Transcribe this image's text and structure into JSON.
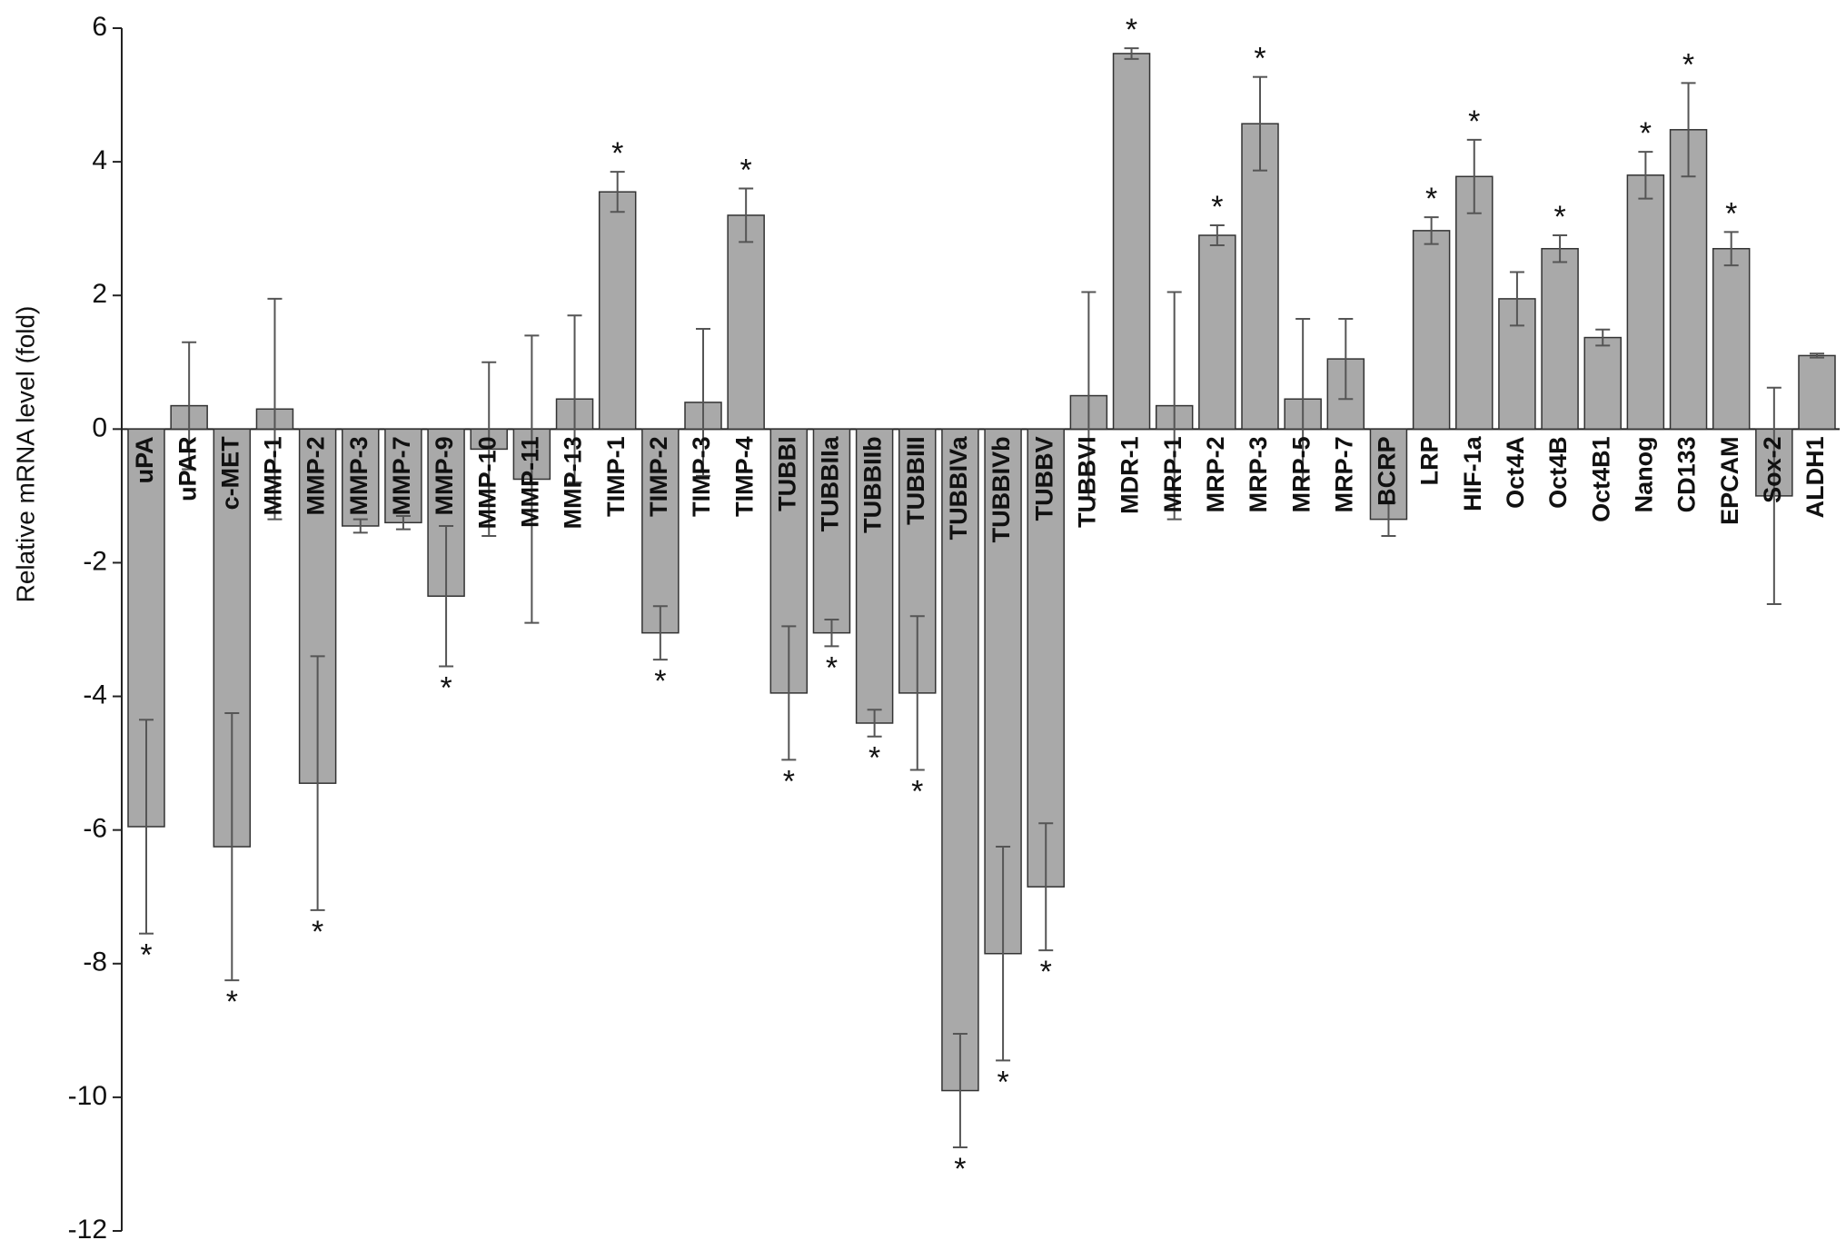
{
  "chart_data": {
    "type": "bar",
    "y_label": "Relative mRNA level (fold)",
    "categories": [
      "uPA",
      "uPAR",
      "c-MET",
      "MMP-1",
      "MMP-2",
      "MMP-3",
      "MMP-7",
      "MMP-9",
      "MMP-10",
      "MMP-11",
      "MMP-13",
      "TIMP-1",
      "TIMP-2",
      "TIMP-3",
      "TIMP-4",
      "TUBBI",
      "TUBBIIa",
      "TUBBIIb",
      "TUBBIII",
      "TUBBIVa",
      "TUBBIVb",
      "TUBBV",
      "TUBBVI",
      "MDR-1",
      "MRP-1",
      "MRP-2",
      "MRP-3",
      "MRP-5",
      "MRP-7",
      "BCRP",
      "LRP",
      "HIF-1a",
      "Oct4A",
      "Oct4B",
      "Oct4B1",
      "Nanog",
      "CD133",
      "EPCAM",
      "Sox-2",
      "ALDH1"
    ],
    "values": [
      -5.95,
      0.35,
      -6.25,
      0.3,
      -5.3,
      -1.45,
      -1.4,
      -2.5,
      -0.3,
      -0.75,
      0.45,
      3.55,
      -3.05,
      0.4,
      3.2,
      -3.95,
      -3.05,
      -4.4,
      -3.95,
      -9.9,
      -7.85,
      -6.85,
      0.5,
      5.62,
      0.35,
      2.9,
      4.57,
      0.45,
      1.05,
      -1.35,
      2.97,
      3.78,
      1.95,
      2.7,
      1.37,
      3.8,
      4.48,
      2.7,
      -1.0,
      1.1
    ],
    "errors": [
      1.6,
      0.95,
      2.0,
      1.65,
      1.9,
      0.1,
      0.1,
      1.05,
      1.3,
      2.15,
      1.25,
      0.3,
      0.4,
      1.1,
      0.4,
      1.0,
      0.2,
      0.2,
      1.15,
      0.85,
      1.6,
      0.95,
      1.55,
      0.08,
      1.7,
      0.15,
      0.7,
      1.2,
      0.6,
      0.25,
      0.2,
      0.55,
      0.4,
      0.2,
      0.12,
      0.35,
      0.7,
      0.25,
      1.62,
      0.03
    ],
    "significance": [
      "*",
      null,
      "*",
      null,
      "*",
      null,
      null,
      "*",
      null,
      null,
      null,
      "*",
      "*",
      null,
      "*",
      "*",
      "*",
      "*",
      "*",
      "*",
      "*",
      "*",
      null,
      "*",
      null,
      "*",
      "*",
      null,
      null,
      null,
      "*",
      "*",
      null,
      "*",
      null,
      "*",
      "*",
      "*",
      null,
      null
    ],
    "color": "#a9a9a9",
    "ylim": [
      -12,
      6
    ],
    "yticks": [
      -12,
      -10,
      -8,
      -6,
      -4,
      -2,
      0,
      2,
      4,
      6
    ]
  }
}
